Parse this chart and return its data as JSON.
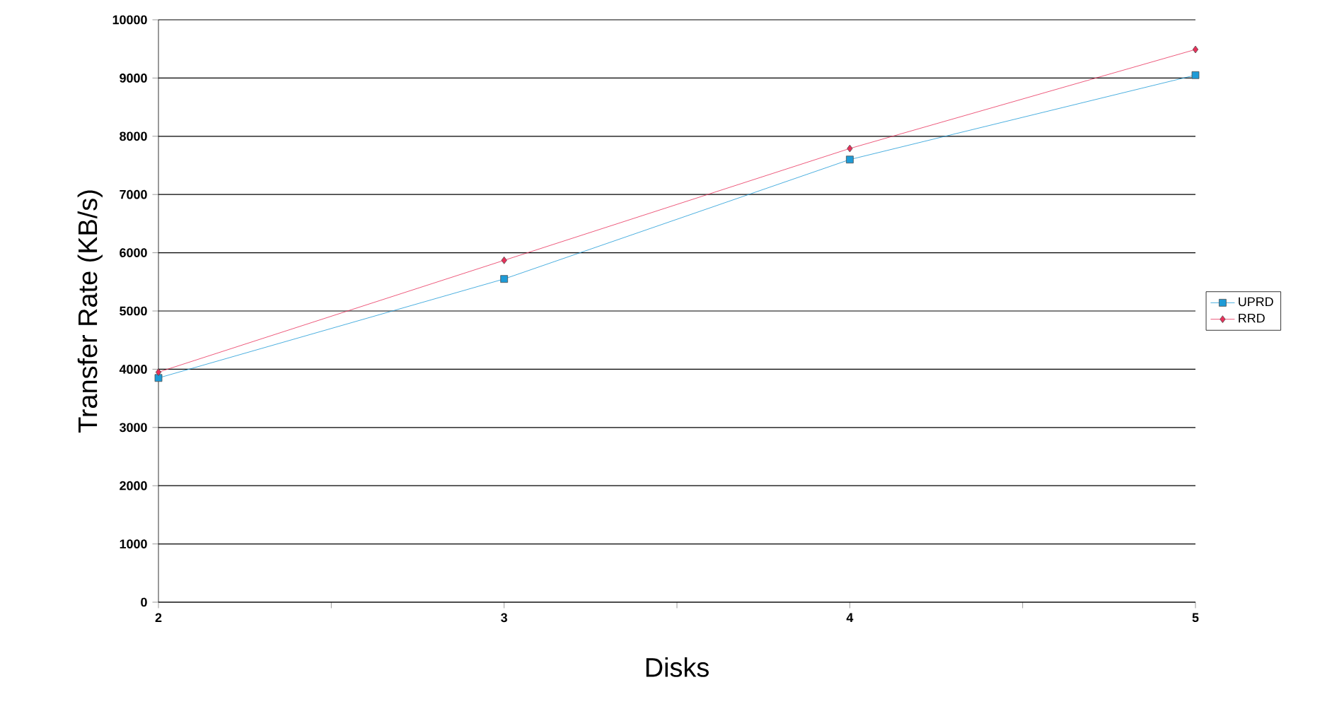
{
  "chart_data": {
    "type": "line",
    "xlabel": "Disks",
    "ylabel": "Transfer Rate (KB/s)",
    "x": [
      2,
      3,
      4,
      5
    ],
    "series": [
      {
        "name": "UPRD",
        "color": "#1e9bd7",
        "marker": "square",
        "values": [
          3850,
          5550,
          7600,
          9050
        ]
      },
      {
        "name": "RRD",
        "color": "#e8305a",
        "marker": "diamond",
        "values": [
          3950,
          5870,
          7790,
          9490
        ]
      }
    ],
    "xlim": [
      2,
      5
    ],
    "xticks": [
      2,
      {
        "value": 2.5,
        "label": null
      },
      3,
      {
        "value": 3.5,
        "label": null
      },
      4,
      {
        "value": 4.5,
        "label": null
      },
      5
    ],
    "ylim": [
      0,
      10000
    ],
    "yticks": [
      0,
      1000,
      2000,
      3000,
      4000,
      5000,
      6000,
      7000,
      8000,
      9000,
      10000
    ],
    "grid": "y",
    "legend": "right"
  }
}
